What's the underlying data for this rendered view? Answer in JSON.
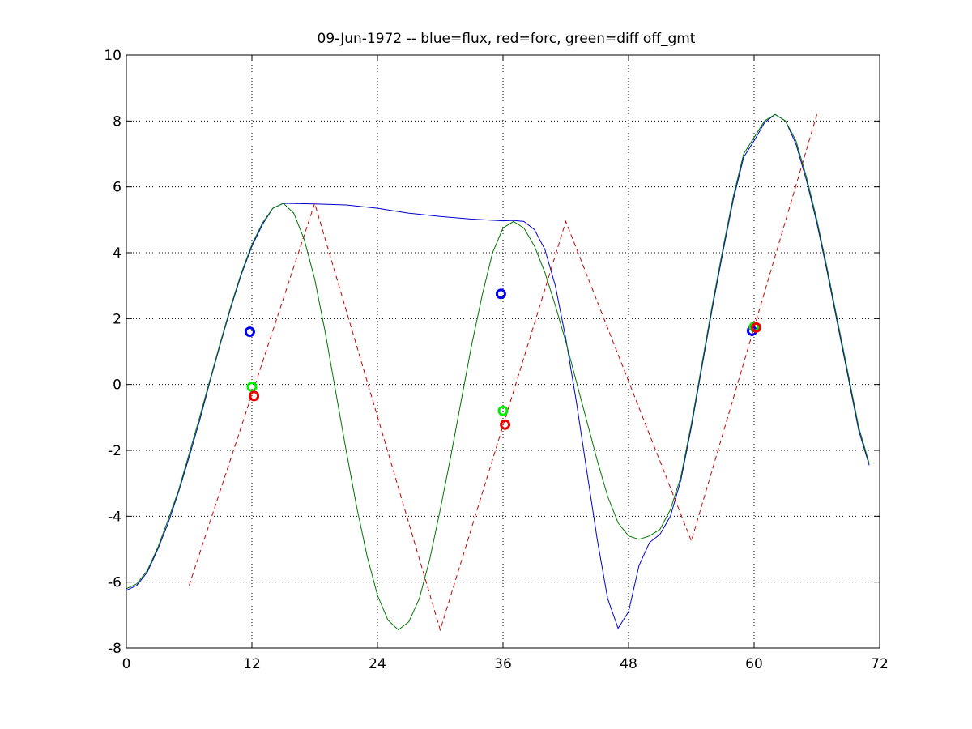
{
  "chart_data": {
    "type": "line",
    "title": "09-Jun-1972 -- blue=flux, red=forc, green=diff off_gmt",
    "xlabel": "",
    "ylabel": "",
    "xlim": [
      0,
      72
    ],
    "ylim": [
      -8,
      10
    ],
    "xticks": [
      0,
      12,
      24,
      36,
      48,
      60,
      72
    ],
    "yticks": [
      -8,
      -6,
      -4,
      -2,
      0,
      2,
      4,
      6,
      8,
      10
    ],
    "xtick_labels": [
      "0",
      "12",
      "24",
      "36",
      "48",
      "60",
      "72"
    ],
    "ytick_labels": [
      "-8",
      "-6",
      "-4",
      "-2",
      "0",
      "2",
      "4",
      "6",
      "8",
      "10"
    ],
    "grid": true,
    "series": [
      {
        "color": "#0000cc",
        "style": "solid",
        "x": [
          0,
          1,
          2,
          3,
          4,
          5,
          6,
          7,
          8,
          9,
          10,
          11,
          12,
          13,
          14,
          15,
          18,
          21,
          24,
          27,
          30,
          33,
          36,
          37,
          38,
          39,
          40,
          41,
          42,
          43,
          44,
          45,
          46,
          47,
          48,
          49,
          50,
          51,
          52,
          53,
          54,
          55,
          56,
          57,
          58,
          59,
          60,
          61,
          62,
          63,
          64,
          65,
          66,
          67,
          68,
          69,
          70,
          71
        ],
        "values": [
          -6.25,
          -6.1,
          -5.7,
          -5.0,
          -4.2,
          -3.25,
          -2.2,
          -1.1,
          0.1,
          1.25,
          2.35,
          3.35,
          4.2,
          4.85,
          5.35,
          5.5,
          5.48,
          5.45,
          5.35,
          5.2,
          5.1,
          5.02,
          4.97,
          4.98,
          4.95,
          4.7,
          4.1,
          3.0,
          1.4,
          -0.5,
          -2.6,
          -4.7,
          -6.5,
          -7.4,
          -6.9,
          -5.5,
          -4.8,
          -4.55,
          -4.0,
          -2.9,
          -1.3,
          0.5,
          2.3,
          4.0,
          5.6,
          6.9,
          7.4,
          7.95,
          8.2,
          8.0,
          7.3,
          6.2,
          4.9,
          3.4,
          1.8,
          0.2,
          -1.4,
          -2.45
        ]
      },
      {
        "color": "#cc0000",
        "style": "dashed",
        "x": [
          6,
          18,
          30,
          42,
          54,
          66
        ],
        "values": [
          -6.1,
          5.5,
          -7.45,
          4.95,
          -4.75,
          8.2
        ]
      },
      {
        "color": "#007700",
        "style": "solid",
        "x": [
          0,
          1,
          2,
          3,
          4,
          5,
          6,
          7,
          8,
          9,
          10,
          11,
          12,
          13,
          14,
          15,
          16,
          17,
          18,
          19,
          20,
          21,
          22,
          23,
          24,
          25,
          26,
          27,
          28,
          29,
          30,
          31,
          32,
          33,
          34,
          35,
          36,
          37,
          38,
          39,
          40,
          41,
          42,
          43,
          44,
          45,
          46,
          47,
          48,
          49,
          50,
          51,
          52,
          53,
          54,
          55,
          56,
          57,
          58,
          59,
          60,
          61,
          62,
          63,
          64,
          65,
          66,
          67,
          68,
          69,
          70,
          71
        ],
        "values": [
          -6.2,
          -6.05,
          -5.65,
          -4.95,
          -4.1,
          -3.2,
          -2.1,
          -1.0,
          0.15,
          1.3,
          2.4,
          3.4,
          4.25,
          4.9,
          5.35,
          5.5,
          5.2,
          4.4,
          3.2,
          1.6,
          -0.2,
          -2.0,
          -3.7,
          -5.2,
          -6.4,
          -7.15,
          -7.45,
          -7.2,
          -6.5,
          -5.3,
          -3.8,
          -2.2,
          -0.5,
          1.2,
          2.7,
          4.0,
          4.75,
          4.95,
          4.75,
          4.2,
          3.4,
          2.4,
          1.3,
          0.1,
          -1.1,
          -2.3,
          -3.4,
          -4.2,
          -4.6,
          -4.7,
          -4.6,
          -4.4,
          -3.8,
          -2.8,
          -1.2,
          0.6,
          2.4,
          4.1,
          5.7,
          7.0,
          7.5,
          8.0,
          8.2,
          8.0,
          7.4,
          6.3,
          5.0,
          3.5,
          1.9,
          0.3,
          -1.3,
          -2.4
        ]
      }
    ],
    "markers": [
      {
        "color": "#0000ee",
        "x": 11.8,
        "y": 1.6
      },
      {
        "color": "#0000ee",
        "x": 35.8,
        "y": 2.75
      },
      {
        "color": "#0000ee",
        "x": 59.8,
        "y": 1.63
      },
      {
        "color": "#00ee00",
        "x": 12.0,
        "y": -0.07
      },
      {
        "color": "#00ee00",
        "x": 36.0,
        "y": -0.8
      },
      {
        "color": "#00ee00",
        "x": 60.0,
        "y": 1.75
      },
      {
        "color": "#ee0000",
        "x": 12.2,
        "y": -0.35
      },
      {
        "color": "#ee0000",
        "x": 36.2,
        "y": -1.22
      },
      {
        "color": "#ee0000",
        "x": 60.2,
        "y": 1.73
      }
    ]
  }
}
